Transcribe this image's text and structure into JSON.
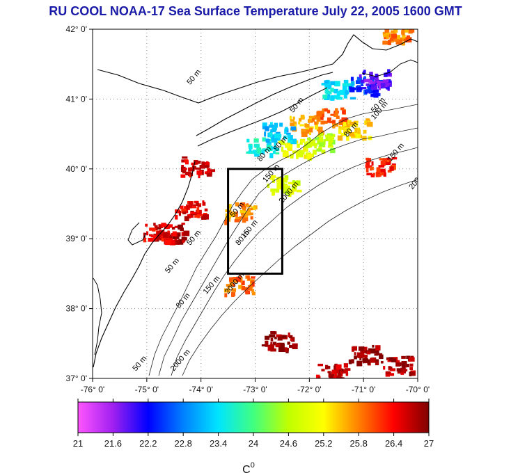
{
  "title": "RU COOL  NOAA-17 Sea Surface Temperature July 22, 2005 1600 GMT",
  "map": {
    "lon_range": [
      -76,
      -70
    ],
    "lat_range": [
      37,
      42
    ],
    "lat_ticks": [
      "42° 0'",
      "41° 0'",
      "40° 0'",
      "39° 0'",
      "38° 0'",
      "37° 0'"
    ],
    "lon_ticks": [
      "-76° 0'",
      "-75° 0'",
      "-74° 0'",
      "-73° 0'",
      "-72° 0'",
      "-71° 0'",
      "-70° 0'"
    ],
    "study_box": {
      "lon_min": -73.5,
      "lon_max": -72.5,
      "lat_min": 38.5,
      "lat_max": 40.0
    },
    "contour_labels": [
      {
        "text": "50 m",
        "lon": -74.2,
        "lat": 41.2
      },
      {
        "text": "50 m",
        "lon": -72.3,
        "lat": 40.8
      },
      {
        "text": "80 m",
        "lon": -72.6,
        "lat": 40.25
      },
      {
        "text": "80 m",
        "lon": -71.3,
        "lat": 40.45
      },
      {
        "text": "80 m",
        "lon": -72.9,
        "lat": 40.1
      },
      {
        "text": "150 m",
        "lon": -72.8,
        "lat": 39.8
      },
      {
        "text": "150 m",
        "lon": -70.5,
        "lat": 40.1
      },
      {
        "text": "150 m",
        "lon": -73.2,
        "lat": 39.0
      },
      {
        "text": "2000 m",
        "lon": -72.5,
        "lat": 39.5
      },
      {
        "text": "2000 m",
        "lon": -73.5,
        "lat": 38.2
      },
      {
        "text": "50 m",
        "lon": -74.6,
        "lat": 38.5
      },
      {
        "text": "50 m",
        "lon": -74.2,
        "lat": 38.9
      },
      {
        "text": "80 m",
        "lon": -74.4,
        "lat": 38.0
      },
      {
        "text": "150 m",
        "lon": -73.9,
        "lat": 38.2
      },
      {
        "text": "2000 m",
        "lon": -74.5,
        "lat": 37.1
      },
      {
        "text": "50 m",
        "lon": -75.2,
        "lat": 37.1
      },
      {
        "text": "50 m",
        "lon": -73.4,
        "lat": 39.3
      },
      {
        "text": "80 m",
        "lon": -73.3,
        "lat": 38.9
      },
      {
        "text": "50 m",
        "lon": -70.8,
        "lat": 40.8
      },
      {
        "text": "100 m",
        "lon": -70.8,
        "lat": 40.7
      },
      {
        "text": "200",
        "lon": -70.1,
        "lat": 39.7
      }
    ],
    "sst_patches": [
      {
        "lon": -74.2,
        "lat": 39.45,
        "temp": 26.5
      },
      {
        "lon": -74.6,
        "lat": 39.1,
        "temp": 26.8
      },
      {
        "lon": -74.1,
        "lat": 40.05,
        "temp": 26.6
      },
      {
        "lon": -74.8,
        "lat": 39.1,
        "temp": 26.5
      },
      {
        "lon": -72.1,
        "lat": 40.65,
        "temp": 25.6
      },
      {
        "lon": -71.6,
        "lat": 40.75,
        "temp": 25.9
      },
      {
        "lon": -71.2,
        "lat": 40.6,
        "temp": 25.4
      },
      {
        "lon": -72.3,
        "lat": 40.3,
        "temp": 25.1
      },
      {
        "lon": -72.5,
        "lat": 39.8,
        "temp": 24.8
      },
      {
        "lon": -71.8,
        "lat": 40.4,
        "temp": 24.6
      },
      {
        "lon": -71.5,
        "lat": 41.15,
        "temp": 23.4
      },
      {
        "lon": -71.0,
        "lat": 41.2,
        "temp": 22.4
      },
      {
        "lon": -70.8,
        "lat": 41.3,
        "temp": 21.8
      },
      {
        "lon": -70.4,
        "lat": 41.9,
        "temp": 25.8
      },
      {
        "lon": -72.9,
        "lat": 40.35,
        "temp": 23.6
      },
      {
        "lon": -72.6,
        "lat": 40.55,
        "temp": 23.2
      },
      {
        "lon": -70.7,
        "lat": 40.05,
        "temp": 26.3
      },
      {
        "lon": -71.0,
        "lat": 37.35,
        "temp": 26.9
      },
      {
        "lon": -71.6,
        "lat": 37.1,
        "temp": 26.7
      },
      {
        "lon": -70.4,
        "lat": 37.2,
        "temp": 26.8
      },
      {
        "lon": -72.6,
        "lat": 37.55,
        "temp": 26.9
      },
      {
        "lon": -73.3,
        "lat": 38.35,
        "temp": 25.9
      },
      {
        "lon": -73.3,
        "lat": 39.4,
        "temp": 25.7
      }
    ]
  },
  "colorbar": {
    "min": 21,
    "max": 27,
    "tick_values": [
      21,
      21.6,
      22.2,
      22.8,
      23.4,
      24,
      24.6,
      25.2,
      25.8,
      26.4,
      27
    ],
    "tick_labels": [
      "21",
      "21.6",
      "22.2",
      "22.8",
      "23.4",
      "24",
      "24.6",
      "25.2",
      "25.8",
      "26.4",
      "27"
    ],
    "unit": "C",
    "unit_superscript": "0",
    "colors": [
      "#ff55ff",
      "#a020f0",
      "#0000ff",
      "#0080ff",
      "#00e5ff",
      "#40ff80",
      "#c0ff00",
      "#ffff00",
      "#ff8000",
      "#ff0000",
      "#800000"
    ]
  }
}
